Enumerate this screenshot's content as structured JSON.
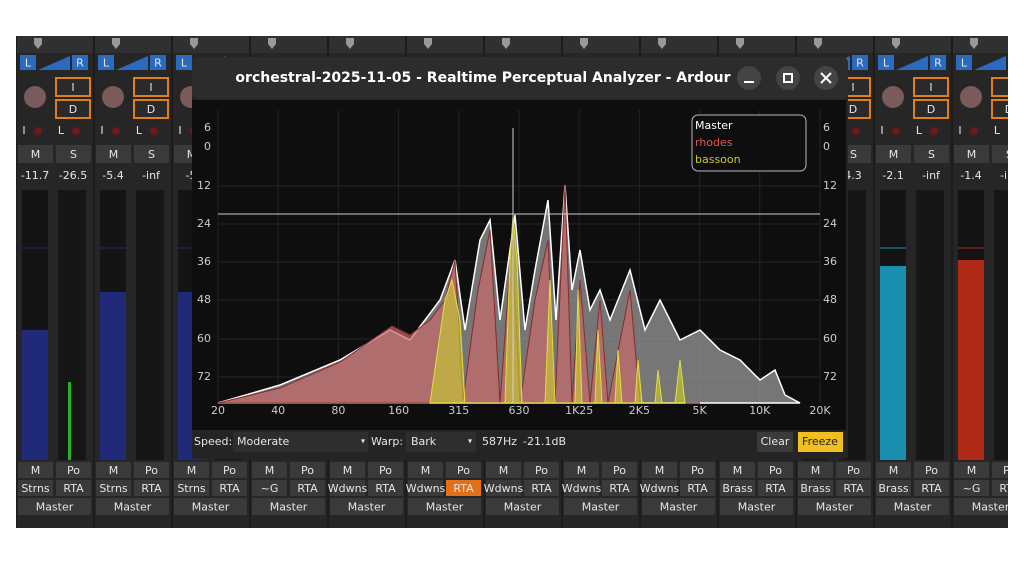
{
  "window": {
    "title": "orchestral-2025-11-05 - Realtime Perceptual Analyzer - Ardour",
    "y_labels": [
      "6",
      "0",
      "12",
      "24",
      "36",
      "48",
      "60",
      "72"
    ],
    "x_labels": [
      "20",
      "40",
      "80",
      "160",
      "315",
      "630",
      "1K25",
      "2K5",
      "5K",
      "10K",
      "20K"
    ],
    "legend": [
      "Master",
      "rhodes",
      "bassoon"
    ],
    "speed_label": "Speed:",
    "speed": "Moderate",
    "warp_label": "Warp:",
    "warp": "Bark",
    "readout_freq": "587Hz",
    "readout_level": "-21.1dB",
    "clear": "Clear",
    "freeze": "Freeze"
  },
  "strips": [
    {
      "top": {
        "pan_l": "L",
        "pan_r": "R",
        "in": "I",
        "disk": "D",
        "mon_i": "I",
        "mon_l": "L",
        "mute": "M",
        "solo": "S",
        "gain": "-11.7",
        "peak": "-26.5"
      },
      "bottom": {
        "mute": "M",
        "pan": "Po",
        "input": "Strns",
        "rta": "RTA",
        "output": "Master"
      }
    },
    {
      "top": {
        "pan_l": "L",
        "pan_r": "R",
        "in": "I",
        "disk": "D",
        "mon_i": "I",
        "mon_l": "L",
        "mute": "M",
        "solo": "S",
        "gain": "-5.4",
        "peak": "-inf"
      },
      "bottom": {
        "mute": "M",
        "pan": "Po",
        "input": "Strns",
        "rta": "RTA",
        "output": "Master"
      }
    },
    {
      "top": {
        "pan_l": "L",
        "mon_i": "I",
        "mute": "M",
        "gain": "-5"
      },
      "bottom": {
        "mute": "M",
        "pan": "Po",
        "input": "Strns",
        "rta": "RTA",
        "output": "Master"
      }
    },
    {
      "bottom": {
        "mute": "M",
        "pan": "Po",
        "input": "~G",
        "rta": "RTA",
        "output": "Master"
      }
    },
    {
      "bottom": {
        "mute": "M",
        "pan": "Po",
        "input": "Wdwns",
        "rta": "RTA",
        "output": "Master"
      }
    },
    {
      "bottom": {
        "mute": "M",
        "pan": "Po",
        "input": "Wdwns",
        "rta": "RTA",
        "output": "Master"
      }
    },
    {
      "bottom": {
        "mute": "M",
        "pan": "Po",
        "input": "Wdwns",
        "rta": "RTA",
        "output": "Master"
      }
    },
    {
      "bottom": {
        "mute": "M",
        "pan": "Po",
        "input": "Wdwns",
        "rta": "RTA",
        "output": "Master"
      }
    },
    {
      "bottom": {
        "mute": "M",
        "pan": "Po",
        "input": "Wdwns",
        "rta": "RTA",
        "output": "Master"
      }
    },
    {
      "bottom": {
        "mute": "M",
        "pan": "Po",
        "input": "Brass",
        "rta": "RTA",
        "output": "Master"
      }
    },
    {
      "top": {
        "pan_r": "R",
        "in": "I",
        "disk": "D",
        "solo": "S",
        "peak": "4.3"
      },
      "bottom": {
        "mute": "M",
        "pan": "Po",
        "input": "Brass",
        "rta": "RTA",
        "output": "Master"
      }
    },
    {
      "top": {
        "pan_l": "L",
        "pan_r": "R",
        "in": "I",
        "disk": "D",
        "mon_i": "I",
        "mon_l": "L",
        "mute": "M",
        "solo": "S",
        "gain": "-2.1",
        "peak": "-inf"
      },
      "bottom": {
        "mute": "M",
        "pan": "Po",
        "input": "Brass",
        "rta": "RTA",
        "output": "Master"
      }
    },
    {
      "top": {
        "pan_l": "L",
        "pan_r": "R",
        "in": "I",
        "disk": "D",
        "mon_i": "I",
        "mon_l": "L",
        "mute": "M",
        "solo": "S",
        "gain": "-1.4",
        "peak": "-inf"
      },
      "bottom": {
        "mute": "M",
        "pan": "Po",
        "input": "~G",
        "rta": "RTA",
        "output": "Master"
      }
    }
  ]
}
